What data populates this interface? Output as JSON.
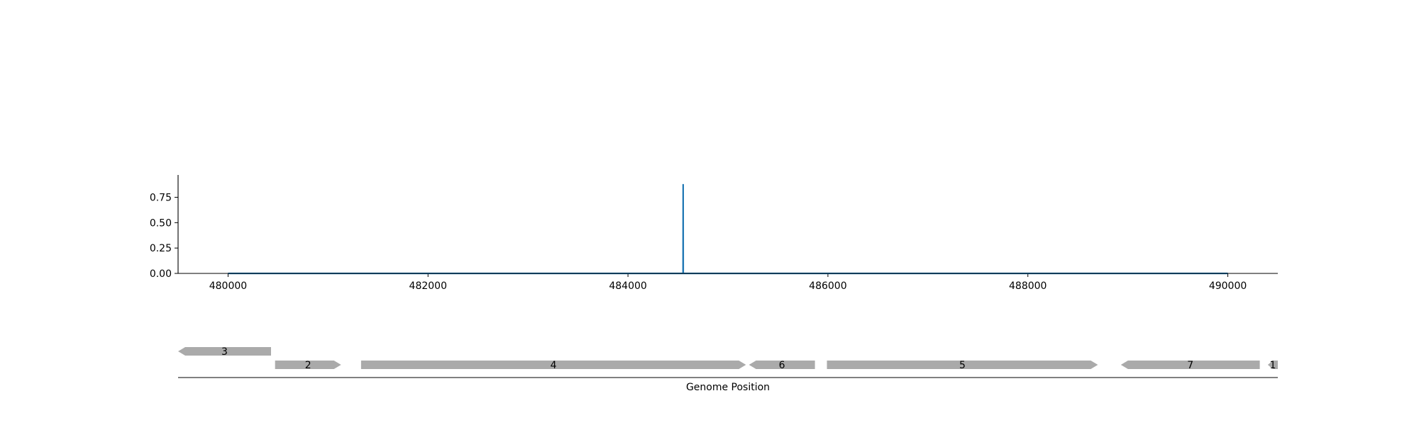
{
  "chart_data": [
    {
      "type": "line",
      "title": "",
      "xlabel": "",
      "ylabel": "",
      "xlim": [
        479500,
        490500
      ],
      "ylim": [
        0,
        0.97
      ],
      "x_ticks": [
        480000,
        482000,
        484000,
        486000,
        488000,
        490000
      ],
      "x_tick_labels": [
        "480000",
        "482000",
        "484000",
        "486000",
        "488000",
        "490000"
      ],
      "y_ticks": [
        0.0,
        0.25,
        0.5,
        0.75
      ],
      "y_tick_labels": [
        "0.00",
        "0.25",
        "0.50",
        "0.75"
      ],
      "grid": false,
      "line_color": "#1f77b4",
      "series": [
        {
          "x": [
            480000,
            484551,
            484552,
            484553,
            490000
          ],
          "y": [
            0.0,
            0.0,
            0.88,
            0.0,
            0.0
          ]
        }
      ]
    },
    {
      "type": "gene_track",
      "xlabel": "Genome Position",
      "xlim": [
        479500,
        490500
      ],
      "gene_color": "#aaaaaa",
      "genes": [
        {
          "label": "3",
          "start": 479500,
          "end": 480430,
          "strand": "-",
          "row": 0
        },
        {
          "label": "2",
          "start": 480470,
          "end": 481130,
          "strand": "+",
          "row": 1
        },
        {
          "label": "4",
          "start": 481330,
          "end": 485180,
          "strand": "+",
          "row": 1
        },
        {
          "label": "6",
          "start": 485210,
          "end": 485870,
          "strand": "-",
          "row": 1
        },
        {
          "label": "5",
          "start": 485990,
          "end": 488700,
          "strand": "+",
          "row": 1
        },
        {
          "label": "7",
          "start": 488930,
          "end": 490320,
          "strand": "-",
          "row": 1
        },
        {
          "label": "1",
          "start": 490400,
          "end": 490500,
          "strand": "-",
          "row": 1
        }
      ]
    }
  ]
}
